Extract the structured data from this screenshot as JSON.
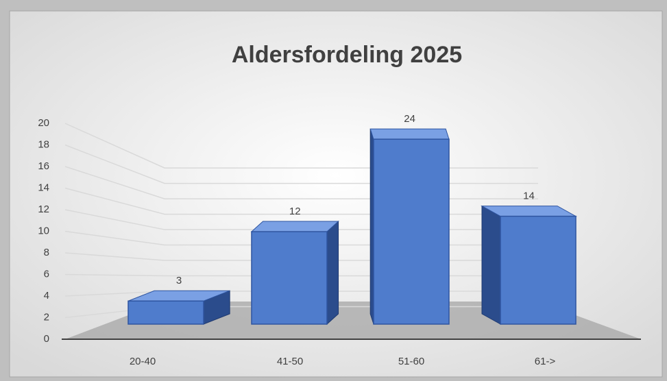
{
  "chart_data": {
    "type": "bar3d",
    "title": "Aldersfordeling 2025",
    "categories": [
      "20-40",
      "41-50",
      "51-60",
      "61->"
    ],
    "values": [
      3,
      12,
      24,
      14
    ],
    "color": "#4f7ccc",
    "ylim": [
      0,
      20
    ],
    "yticks": [
      0,
      2,
      4,
      6,
      8,
      10,
      12,
      14,
      16,
      18,
      20
    ],
    "grid": true
  }
}
